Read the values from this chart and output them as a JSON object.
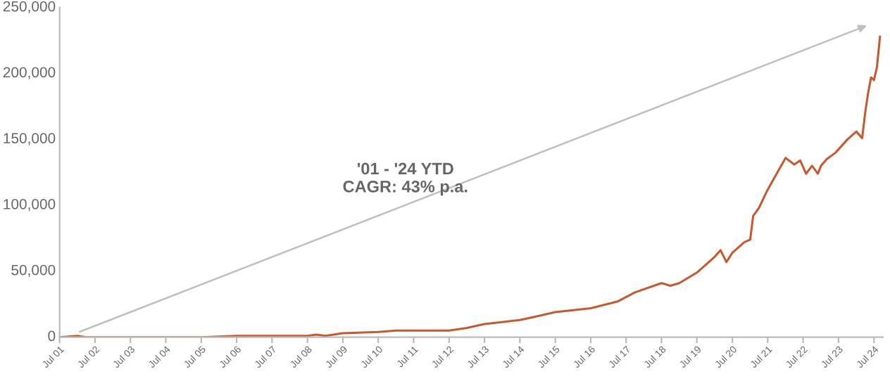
{
  "chart_data": {
    "type": "line",
    "annotations": [
      "'01 - '24 YTD\nCAGR: 43% p.a."
    ],
    "series": [
      {
        "color": "#c65a2e",
        "x": [
          "2001-07",
          "2002-01",
          "2002-04",
          "2003-07",
          "2005-07",
          "2006-07",
          "2007-01",
          "2007-07",
          "2008-07",
          "2008-10",
          "2009-01",
          "2009-07",
          "2010-07",
          "2011-01",
          "2012-07",
          "2013-01",
          "2013-07",
          "2014-07",
          "2015-01",
          "2015-07",
          "2016-07",
          "2017-04",
          "2017-10",
          "2018-07",
          "2018-10",
          "2019-01",
          "2019-07",
          "2020-01",
          "2020-03",
          "2020-05",
          "2020-07",
          "2020-11",
          "2021-01",
          "2021-02",
          "2021-04",
          "2021-07",
          "2022-01",
          "2022-04",
          "2022-06",
          "2022-08",
          "2022-10",
          "2022-12",
          "2023-01",
          "2023-03",
          "2023-06",
          "2023-10",
          "2024-01",
          "2024-03",
          "2024-04",
          "2024-05",
          "2024-06",
          "2024-07",
          "2024-08",
          "2024-09"
        ],
        "values": [
          0,
          1000,
          0,
          0,
          0,
          1000,
          1000,
          1000,
          1000,
          2000,
          1000,
          3000,
          4000,
          5000,
          5000,
          7000,
          10000,
          13000,
          16000,
          19000,
          22000,
          27000,
          34000,
          41000,
          39000,
          41000,
          49000,
          61000,
          66000,
          57000,
          64000,
          72000,
          74000,
          92000,
          98000,
          112000,
          136000,
          131000,
          134000,
          124000,
          130000,
          124000,
          130000,
          135000,
          140000,
          150000,
          156000,
          151000,
          170000,
          185000,
          197000,
          195000,
          205000,
          228000
        ]
      }
    ],
    "xlim": [
      "2001-07",
      "2024-10"
    ],
    "xticks": [
      {
        "value": "2001-07",
        "label": "Jul 01"
      },
      {
        "value": "2002-07",
        "label": "Jul 02"
      },
      {
        "value": "2003-07",
        "label": "Jul 03"
      },
      {
        "value": "2004-07",
        "label": "Jul 04"
      },
      {
        "value": "2005-07",
        "label": "Jul 05"
      },
      {
        "value": "2006-07",
        "label": "Jul 06"
      },
      {
        "value": "2007-07",
        "label": "Jul 07"
      },
      {
        "value": "2008-07",
        "label": "Jul 08"
      },
      {
        "value": "2009-07",
        "label": "Jul 09"
      },
      {
        "value": "2010-07",
        "label": "Jul 10"
      },
      {
        "value": "2011-07",
        "label": "Jul 11"
      },
      {
        "value": "2012-07",
        "label": "Jul 12"
      },
      {
        "value": "2013-07",
        "label": "Jul 13"
      },
      {
        "value": "2014-07",
        "label": "Jul 14"
      },
      {
        "value": "2015-07",
        "label": "Jul 15"
      },
      {
        "value": "2016-07",
        "label": "Jul 16"
      },
      {
        "value": "2017-07",
        "label": "Jul 17"
      },
      {
        "value": "2018-07",
        "label": "Jul 18"
      },
      {
        "value": "2019-07",
        "label": "Jul 19"
      },
      {
        "value": "2020-07",
        "label": "Jul 20"
      },
      {
        "value": "2021-07",
        "label": "Jul 21"
      },
      {
        "value": "2022-07",
        "label": "Jul 22"
      },
      {
        "value": "2023-07",
        "label": "Jul 23"
      },
      {
        "value": "2024-07",
        "label": "Jul 24"
      }
    ],
    "ylim": [
      0,
      250000
    ],
    "yticks": [
      {
        "value": 0,
        "label": "0"
      },
      {
        "value": 50000,
        "label": "50,000"
      },
      {
        "value": 100000,
        "label": "100,000"
      },
      {
        "value": 150000,
        "label": "150,000"
      },
      {
        "value": 200000,
        "label": "200,000"
      },
      {
        "value": 250000,
        "label": "250,000"
      }
    ],
    "grid": false,
    "legend": false
  }
}
